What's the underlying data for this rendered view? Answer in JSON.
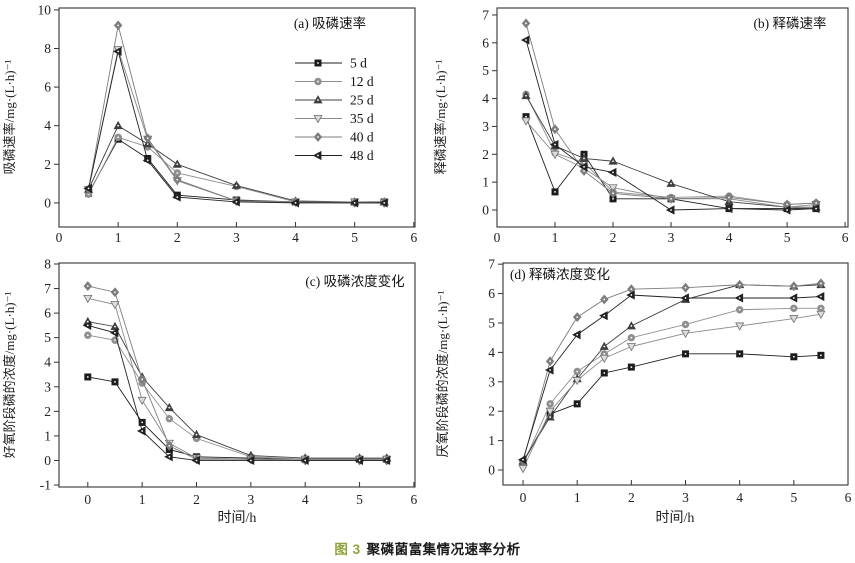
{
  "figure": {
    "caption_label": "图 3",
    "caption_text": "聚磷菌富集情况速率分析",
    "caption_label_color": "#8fa33b",
    "axis_color": "#333333",
    "background": "#ffffff"
  },
  "legend": {
    "position": "inside-top-right-of-panel-a",
    "entries": [
      {
        "label": "5 d",
        "marker": "square",
        "color": "#1c1c1c",
        "open": false
      },
      {
        "label": "12 d",
        "marker": "circle",
        "color": "#8f8f8f",
        "open": false
      },
      {
        "label": "25 d",
        "marker": "triangle-up",
        "color": "#3f3f3f",
        "open": false
      },
      {
        "label": "35 d",
        "marker": "triangle-down",
        "color": "#a8a8a8",
        "open": true
      },
      {
        "label": "40 d",
        "marker": "diamond",
        "color": "#7d7d7d",
        "open": false
      },
      {
        "label": "48 d",
        "marker": "triangle-left",
        "color": "#222222",
        "open": false
      }
    ]
  },
  "chart_data": [
    {
      "id": "a",
      "type": "line",
      "title": "(a) 吸磷速率",
      "ylabel": "吸磷速率/mg·(L·h)⁻¹",
      "xlabel": "",
      "x": [
        0.5,
        1,
        1.5,
        2,
        3,
        4,
        5,
        5.5
      ],
      "xlim": [
        0,
        6.02
      ],
      "ylim": [
        -1.25,
        10.1
      ],
      "xticks": [
        0,
        1,
        2,
        3,
        4,
        5,
        6
      ],
      "yticks": [
        0,
        2,
        4,
        6,
        8,
        10
      ],
      "legend": true,
      "series": [
        {
          "name": "5 d",
          "values": [
            0.5,
            3.3,
            2.3,
            0.4,
            0.15,
            0.05,
            0.05,
            0.05
          ]
        },
        {
          "name": "12 d",
          "values": [
            0.45,
            3.4,
            2.9,
            1.55,
            0.85,
            0.05,
            0.05,
            0.05
          ]
        },
        {
          "name": "25 d",
          "values": [
            0.7,
            4.0,
            3.05,
            2.0,
            0.9,
            0.1,
            0.05,
            0.05
          ]
        },
        {
          "name": "35 d",
          "values": [
            0.7,
            7.95,
            3.3,
            1.15,
            0.1,
            0.05,
            0.05,
            0.0
          ]
        },
        {
          "name": "40 d",
          "values": [
            0.7,
            9.2,
            3.35,
            1.2,
            0.1,
            0.05,
            0.0,
            0.0
          ]
        },
        {
          "name": "48 d",
          "values": [
            0.75,
            7.85,
            2.2,
            0.3,
            0.05,
            0.0,
            0.0,
            0.0
          ]
        }
      ]
    },
    {
      "id": "b",
      "type": "line",
      "title": "(b) 释磷速率",
      "ylabel": "释磷速率/mg·(L·h)⁻¹",
      "xlabel": "",
      "x": [
        0.5,
        1,
        1.5,
        2,
        3,
        4,
        5,
        5.5
      ],
      "xlim": [
        0,
        6.05
      ],
      "ylim": [
        -0.61,
        7.25
      ],
      "xticks": [
        0,
        1,
        2,
        3,
        4,
        5,
        6
      ],
      "yticks": [
        0,
        1,
        2,
        3,
        4,
        5,
        6,
        7
      ],
      "legend": false,
      "series": [
        {
          "name": "5 d",
          "values": [
            3.35,
            0.65,
            2.0,
            0.4,
            0.4,
            0.05,
            0.05,
            0.05
          ]
        },
        {
          "name": "12 d",
          "values": [
            4.15,
            2.05,
            1.7,
            0.65,
            0.45,
            0.5,
            0.2,
            0.25
          ]
        },
        {
          "name": "25 d",
          "values": [
            4.1,
            2.3,
            1.85,
            1.75,
            0.95,
            0.3,
            0.1,
            0.1
          ]
        },
        {
          "name": "35 d",
          "values": [
            3.2,
            2.0,
            1.5,
            0.8,
            0.4,
            0.4,
            0.1,
            0.2
          ]
        },
        {
          "name": "40 d",
          "values": [
            6.7,
            2.9,
            1.4,
            0.6,
            0.4,
            0.45,
            0.2,
            0.25
          ]
        },
        {
          "name": "48 d",
          "values": [
            6.1,
            2.35,
            1.55,
            1.35,
            0.0,
            0.05,
            0.0,
            0.05
          ]
        }
      ]
    },
    {
      "id": "c",
      "type": "line",
      "title": "(c) 吸磷浓度变化",
      "ylabel": "好氧阶段磷的浓度/mg·(L·h)⁻¹",
      "xlabel": "时间/h",
      "x": [
        0,
        0.5,
        1,
        1.5,
        2,
        3,
        4,
        5,
        5.5
      ],
      "xlim": [
        -0.53,
        6.02
      ],
      "ylim": [
        -1.08,
        8.04
      ],
      "xticks": [
        0,
        1,
        2,
        3,
        4,
        5,
        6
      ],
      "yticks": [
        -1,
        0,
        1,
        2,
        3,
        4,
        5,
        6,
        7,
        8
      ],
      "legend": false,
      "series": [
        {
          "name": "5 d",
          "values": [
            3.4,
            3.2,
            1.55,
            0.45,
            0.15,
            0.1,
            0.05,
            0.05,
            0.05
          ]
        },
        {
          "name": "12 d",
          "values": [
            5.1,
            4.9,
            3.15,
            1.7,
            0.9,
            0.15,
            0.05,
            0.05,
            0.05
          ]
        },
        {
          "name": "25 d",
          "values": [
            5.65,
            5.45,
            3.4,
            2.15,
            1.05,
            0.2,
            0.1,
            0.1,
            0.1
          ]
        },
        {
          "name": "35 d",
          "values": [
            6.6,
            6.35,
            2.45,
            0.7,
            0.1,
            0.05,
            0.05,
            0.05,
            0.05
          ]
        },
        {
          "name": "40 d",
          "values": [
            7.1,
            6.85,
            3.3,
            0.6,
            0.05,
            0.05,
            0.0,
            0.0,
            0.0
          ]
        },
        {
          "name": "48 d",
          "values": [
            5.5,
            5.2,
            1.2,
            0.15,
            0.0,
            0.0,
            0.0,
            0.0,
            0.0
          ]
        }
      ]
    },
    {
      "id": "d",
      "type": "line",
      "title": "(d) 释磷浓度变化",
      "ylabel": "厌氧阶段磷的浓度/mg·(L·h)⁻¹",
      "xlabel": "时间/h",
      "x": [
        0,
        0.5,
        1,
        1.5,
        2,
        3,
        4,
        5,
        5.5
      ],
      "xlim": [
        -0.37,
        6.0
      ],
      "ylim": [
        -0.51,
        7.04
      ],
      "xticks": [
        0,
        1,
        2,
        3,
        4,
        5,
        6
      ],
      "yticks": [
        0,
        1,
        2,
        3,
        4,
        5,
        6,
        7
      ],
      "legend": false,
      "series": [
        {
          "name": "5 d",
          "values": [
            0.25,
            1.9,
            2.25,
            3.3,
            3.5,
            3.95,
            3.95,
            3.85,
            3.9
          ]
        },
        {
          "name": "12 d",
          "values": [
            0.2,
            2.25,
            3.35,
            3.95,
            4.5,
            4.95,
            5.45,
            5.5,
            5.5
          ]
        },
        {
          "name": "25 d",
          "values": [
            0.3,
            1.8,
            3.1,
            4.2,
            4.9,
            5.8,
            6.3,
            6.25,
            6.3
          ]
        },
        {
          "name": "35 d",
          "values": [
            0.05,
            2.0,
            3.05,
            3.8,
            4.2,
            4.65,
            4.9,
            5.15,
            5.3
          ]
        },
        {
          "name": "40 d",
          "values": [
            0.3,
            3.7,
            5.2,
            5.8,
            6.15,
            6.2,
            6.3,
            6.25,
            6.35
          ]
        },
        {
          "name": "48 d",
          "values": [
            0.35,
            3.4,
            4.6,
            5.25,
            5.95,
            5.85,
            5.85,
            5.85,
            5.9
          ]
        }
      ]
    }
  ]
}
